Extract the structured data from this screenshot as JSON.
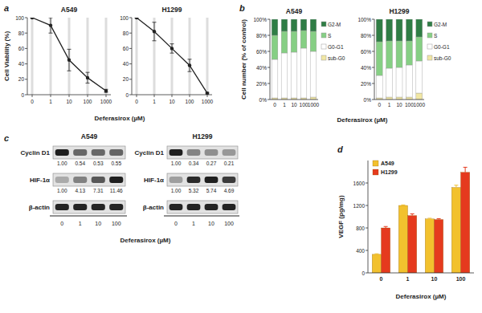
{
  "chart_data": [
    {
      "type": "line",
      "annotations": [
        "a"
      ],
      "title": "A549",
      "y_label": "Cell Viability (%)",
      "x_label": "Deferasirox (µM)",
      "categories": [
        "0",
        "1",
        "10",
        "100",
        "1000"
      ],
      "values": [
        100,
        90,
        45,
        22,
        5
      ],
      "errors": [
        0,
        10,
        14,
        7,
        2
      ],
      "ylim": [
        0,
        100
      ],
      "yticks": [
        0,
        20,
        40,
        60,
        80,
        100
      ],
      "color": "#222222",
      "marker": "circle",
      "line_style": "solid",
      "grid": true
    },
    {
      "type": "line",
      "title": "H1299",
      "categories": [
        "0",
        "1",
        "10",
        "100",
        "1000"
      ],
      "values": [
        100,
        82,
        60,
        38,
        2
      ],
      "errors": [
        0,
        12,
        6,
        8,
        1
      ],
      "ylim": [
        0,
        100
      ],
      "yticks": [
        0,
        20,
        40,
        60,
        80,
        100
      ],
      "color": "#222222",
      "marker": "circle",
      "line_style": "solid",
      "grid": true
    },
    {
      "type": "bar",
      "stacked": true,
      "annotations": [
        "b"
      ],
      "title": "A549",
      "y_label": "Cell number (% of control)",
      "x_label": "Deferasirox (µM)",
      "categories": [
        "0",
        "1",
        "10",
        "100",
        "1000"
      ],
      "series": [
        {
          "name": "sub-G0",
          "color": "#f1e7a4",
          "values": [
            2,
            2,
            2,
            2,
            3
          ]
        },
        {
          "name": "G0-G1",
          "color": "#ffffff",
          "values": [
            48,
            56,
            57,
            62,
            57
          ]
        },
        {
          "name": "S",
          "color": "#86cf84",
          "values": [
            30,
            27,
            26,
            22,
            25
          ]
        },
        {
          "name": "G2-M",
          "color": "#2f7d45",
          "values": [
            20,
            15,
            15,
            14,
            15
          ]
        }
      ],
      "ylim": [
        0,
        100
      ],
      "yticks": [
        {
          "value": 0,
          "label": "0%"
        },
        {
          "value": 20,
          "label": "20%"
        },
        {
          "value": 40,
          "label": "40%"
        },
        {
          "value": 60,
          "label": "60%"
        },
        {
          "value": 80,
          "label": "80%"
        },
        {
          "value": 100,
          "label": "100%"
        }
      ],
      "legend": "right"
    },
    {
      "type": "bar",
      "stacked": true,
      "title": "H1299",
      "categories": [
        "0",
        "1",
        "10",
        "100",
        "1000"
      ],
      "series": [
        {
          "name": "sub-G0",
          "color": "#f1e7a4",
          "values": [
            2,
            3,
            3,
            3,
            8
          ]
        },
        {
          "name": "G0-G1",
          "color": "#ffffff",
          "values": [
            28,
            36,
            37,
            40,
            40
          ]
        },
        {
          "name": "S",
          "color": "#86cf84",
          "values": [
            42,
            34,
            33,
            30,
            30
          ]
        },
        {
          "name": "G2-M",
          "color": "#2f7d45",
          "values": [
            28,
            27,
            27,
            27,
            22
          ]
        }
      ],
      "ylim": [
        0,
        100
      ],
      "yticks": [
        {
          "value": 0,
          "label": "0%"
        },
        {
          "value": 20,
          "label": "20%"
        },
        {
          "value": 40,
          "label": "40%"
        },
        {
          "value": 60,
          "label": "60%"
        },
        {
          "value": 80,
          "label": "80%"
        },
        {
          "value": 100,
          "label": "100%"
        }
      ],
      "legend": "right"
    },
    {
      "type": "blot",
      "annotations": [
        "c"
      ],
      "title": "A549",
      "x_label": "Deferasirox (µM)",
      "categories": [
        "0",
        "1",
        "10",
        "100"
      ],
      "series": [
        {
          "name": "Cyclin D1",
          "values": [
            1,
            0.54,
            0.53,
            0.55
          ],
          "value_labels": [
            "1.00",
            "0.54",
            "0.53",
            "0.55"
          ]
        },
        {
          "name": "HIF-1α",
          "values": [
            1,
            4.13,
            7.31,
            11.46
          ],
          "value_labels": [
            "1.00",
            "4.13",
            "7.31",
            "11.46"
          ]
        },
        {
          "name": "β-actin"
        }
      ]
    },
    {
      "type": "blot",
      "title": "H1299",
      "categories": [
        "0",
        "1",
        "10",
        "100"
      ],
      "series": [
        {
          "name": "Cyclin D1",
          "values": [
            1,
            0.34,
            0.27,
            0.21
          ],
          "value_labels": [
            "1.00",
            "0.34",
            "0.27",
            "0.21"
          ]
        },
        {
          "name": "HIF-1α",
          "values": [
            1,
            5.32,
            5.74,
            4.69
          ],
          "value_labels": [
            "1.00",
            "5.32",
            "5.74",
            "4.69"
          ]
        },
        {
          "name": "β-actin"
        }
      ]
    },
    {
      "type": "bar",
      "annotations": [
        "d"
      ],
      "y_label": "VEGF (pg/mg)",
      "x_label": "Deferasirox (µM)",
      "categories": [
        "0",
        "1",
        "10",
        "100"
      ],
      "series": [
        {
          "name": "A549",
          "color": "#f2c12e",
          "values": [
            330,
            1200,
            960,
            1520
          ],
          "errors": [
            10,
            10,
            12,
            40
          ]
        },
        {
          "name": "H1299",
          "color": "#e53a1e",
          "values": [
            800,
            1020,
            950,
            1790
          ],
          "errors": [
            25,
            30,
            15,
            90
          ]
        }
      ],
      "ylim": [
        0,
        2000
      ],
      "yticks": [
        0,
        400,
        800,
        1200,
        1600
      ],
      "legend": "top-left"
    }
  ]
}
